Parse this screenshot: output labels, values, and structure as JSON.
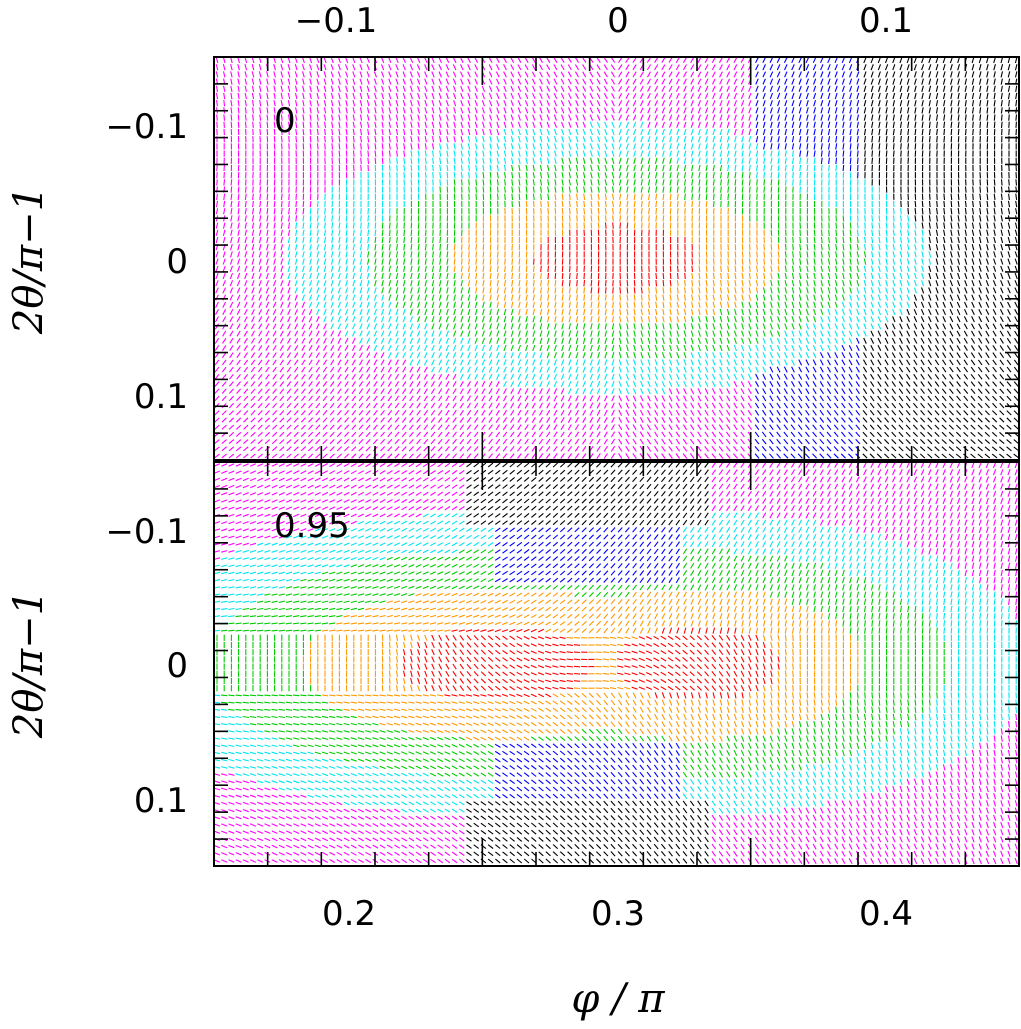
{
  "chart_data": [
    {
      "type": "heatmap",
      "subtype": "director-field",
      "panel_label": "0",
      "xlabel": "",
      "ylabel": "2θ/π−1",
      "top_axis": {
        "xlim": [
          -0.15,
          0.15
        ],
        "ticks": [
          -0.1,
          0,
          0.1
        ],
        "tick_labels": [
          "−0.1",
          "0",
          "0.1"
        ]
      },
      "x_range": [
        0.15,
        0.45
      ],
      "ylim": [
        -0.15,
        0.15
      ],
      "y_ticks": [
        -0.1,
        0,
        0.1
      ],
      "y_tick_labels": [
        "−0.1",
        "0",
        "0.1"
      ],
      "y_inverted": true,
      "color_levels": [
        "#ff0000",
        "#ff9900",
        "#00cc00",
        "#00e5ee",
        "#ff00ff",
        "#0000ff",
        "#000000"
      ],
      "center": [
        0.3,
        0
      ],
      "description_of_field": "concentric elliptical color bands centred at (0.3, 0); dashes radial around the centre"
    },
    {
      "type": "heatmap",
      "subtype": "director-field",
      "panel_label": "0.95",
      "xlabel": "φ / π",
      "ylabel": "2θ/π−1",
      "xlim": [
        0.15,
        0.45
      ],
      "x_ticks": [
        0.2,
        0.3,
        0.4
      ],
      "x_tick_labels": [
        "0.2",
        "0.3",
        "0.4"
      ],
      "ylim": [
        -0.15,
        0.15
      ],
      "y_ticks": [
        -0.1,
        0,
        0.1
      ],
      "y_tick_labels": [
        "−0.1",
        "0",
        "0.1"
      ],
      "y_inverted": true,
      "color_levels": [
        "#ff0000",
        "#ff9900",
        "#00cc00",
        "#00e5ee",
        "#ff00ff",
        "#0000ff",
        "#000000"
      ],
      "defect_at": [
        0.29,
        0
      ]
    }
  ]
}
